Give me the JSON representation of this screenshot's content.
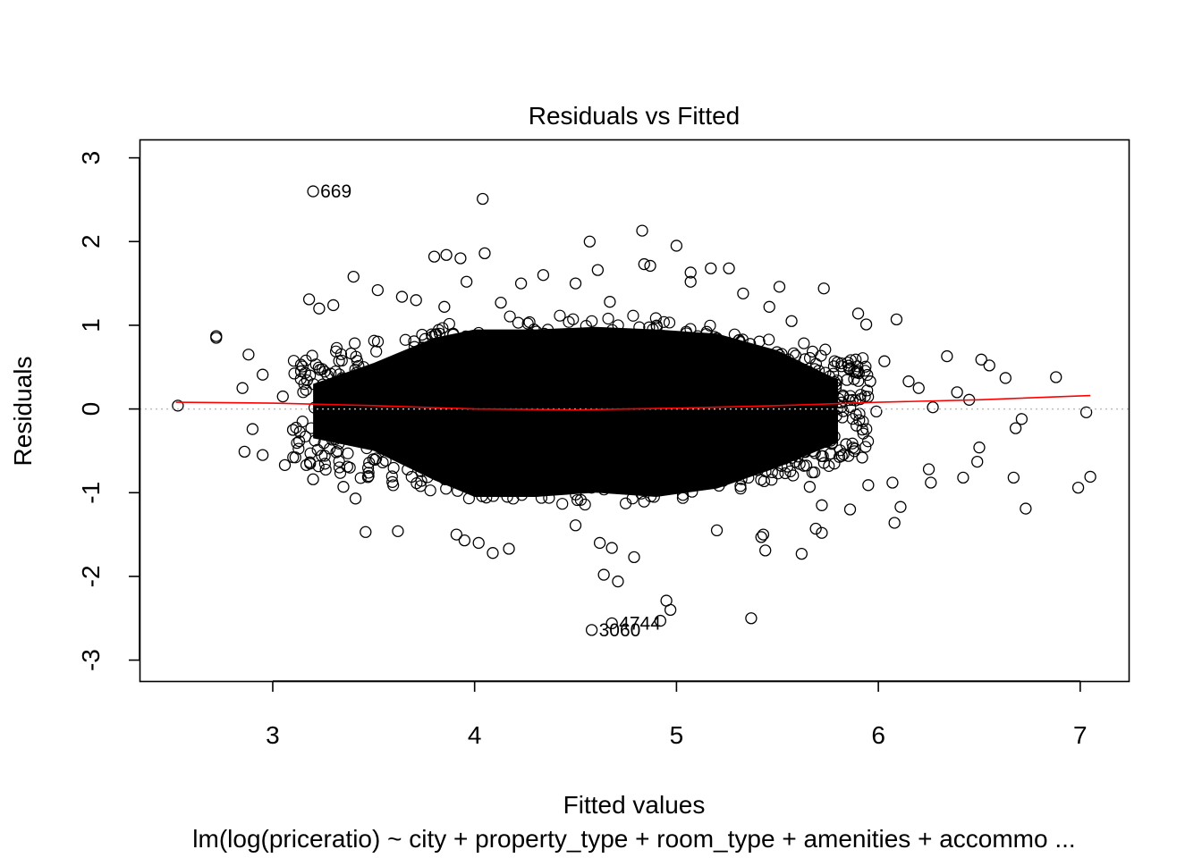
{
  "chart_data": {
    "type": "scatter",
    "title": "Residuals vs Fitted",
    "xlabel": "Fitted values",
    "ylabel": "Residuals",
    "subtitle": "lm(log(priceratio) ~ city + property_type + room_type + amenities + accommo ...",
    "xlim": [
      2.34,
      7.24
    ],
    "ylim": [
      -3.25,
      3.22
    ],
    "x_ticks": [
      3,
      4,
      5,
      6,
      7
    ],
    "y_ticks": [
      -3,
      -2,
      -1,
      0,
      1,
      2,
      3
    ],
    "zero_reference_line": true,
    "point_style": "open-circle",
    "smooth_color": "#ff0000",
    "reference_color": "#bdbdbd",
    "smooth_line": {
      "x": [
        2.52,
        3.0,
        3.5,
        4.0,
        4.5,
        5.0,
        5.5,
        6.0,
        6.5,
        7.05
      ],
      "y": [
        0.08,
        0.07,
        0.04,
        0.0,
        -0.01,
        0.01,
        0.04,
        0.08,
        0.11,
        0.16
      ]
    },
    "labeled_points": [
      {
        "label": "669",
        "x": 3.2,
        "y": 2.6
      },
      {
        "label": "3060",
        "x": 4.58,
        "y": -2.64
      },
      {
        "label": "4744",
        "x": 4.68,
        "y": -2.56
      }
    ],
    "points": [
      {
        "x": 4.04,
        "y": 2.51
      },
      {
        "x": 4.57,
        "y": 2.0
      },
      {
        "x": 4.83,
        "y": 2.13
      },
      {
        "x": 5.0,
        "y": 1.95
      },
      {
        "x": 3.8,
        "y": 1.82
      },
      {
        "x": 3.86,
        "y": 1.84
      },
      {
        "x": 3.93,
        "y": 1.8
      },
      {
        "x": 4.05,
        "y": 1.86
      },
      {
        "x": 4.84,
        "y": 1.73
      },
      {
        "x": 4.87,
        "y": 1.71
      },
      {
        "x": 5.07,
        "y": 1.63
      },
      {
        "x": 5.17,
        "y": 1.68
      },
      {
        "x": 5.26,
        "y": 1.68
      },
      {
        "x": 4.61,
        "y": 1.66
      },
      {
        "x": 3.4,
        "y": 1.58
      },
      {
        "x": 5.51,
        "y": 1.46
      },
      {
        "x": 5.73,
        "y": 1.44
      },
      {
        "x": 3.18,
        "y": 1.31
      },
      {
        "x": 3.96,
        "y": 1.52
      },
      {
        "x": 2.72,
        "y": 0.87
      },
      {
        "x": 2.72,
        "y": 0.85
      },
      {
        "x": 2.53,
        "y": 0.04
      },
      {
        "x": 6.09,
        "y": 1.07
      },
      {
        "x": 6.34,
        "y": 0.63
      },
      {
        "x": 6.51,
        "y": 0.59
      },
      {
        "x": 6.55,
        "y": 0.52
      },
      {
        "x": 6.63,
        "y": 0.37
      },
      {
        "x": 6.88,
        "y": 0.38
      },
      {
        "x": 7.03,
        "y": -0.04
      },
      {
        "x": 6.68,
        "y": -0.23
      },
      {
        "x": 6.71,
        "y": -0.12
      },
      {
        "x": 6.5,
        "y": -0.46
      },
      {
        "x": 6.49,
        "y": -0.63
      },
      {
        "x": 6.67,
        "y": -0.82
      },
      {
        "x": 6.99,
        "y": -0.94
      },
      {
        "x": 7.05,
        "y": -0.81
      },
      {
        "x": 6.73,
        "y": -1.19
      },
      {
        "x": 6.42,
        "y": -0.82
      },
      {
        "x": 6.26,
        "y": -0.88
      },
      {
        "x": 6.25,
        "y": -0.72
      },
      {
        "x": 6.08,
        "y": -1.36
      },
      {
        "x": 6.11,
        "y": -1.17
      },
      {
        "x": 6.07,
        "y": -0.88
      },
      {
        "x": 6.27,
        "y": 0.02
      },
      {
        "x": 6.39,
        "y": 0.2
      },
      {
        "x": 6.45,
        "y": 0.11
      },
      {
        "x": 6.2,
        "y": 0.25
      },
      {
        "x": 6.15,
        "y": 0.33
      },
      {
        "x": 2.85,
        "y": 0.25
      },
      {
        "x": 2.88,
        "y": 0.65
      },
      {
        "x": 2.9,
        "y": -0.24
      },
      {
        "x": 2.86,
        "y": -0.51
      },
      {
        "x": 2.95,
        "y": -0.55
      },
      {
        "x": 2.95,
        "y": 0.41
      },
      {
        "x": 3.06,
        "y": -0.67
      },
      {
        "x": 3.2,
        "y": -0.84
      },
      {
        "x": 3.35,
        "y": -0.93
      },
      {
        "x": 3.41,
        "y": -1.07
      },
      {
        "x": 3.46,
        "y": -1.47
      },
      {
        "x": 3.62,
        "y": -1.46
      },
      {
        "x": 3.91,
        "y": -1.5
      },
      {
        "x": 3.95,
        "y": -1.57
      },
      {
        "x": 4.02,
        "y": -1.6
      },
      {
        "x": 4.09,
        "y": -1.72
      },
      {
        "x": 4.17,
        "y": -1.67
      },
      {
        "x": 4.5,
        "y": -1.39
      },
      {
        "x": 4.64,
        "y": -1.98
      },
      {
        "x": 4.71,
        "y": -2.06
      },
      {
        "x": 4.68,
        "y": -1.66
      },
      {
        "x": 4.79,
        "y": -1.77
      },
      {
        "x": 4.92,
        "y": -2.53
      },
      {
        "x": 4.95,
        "y": -2.29
      },
      {
        "x": 4.97,
        "y": -2.4
      },
      {
        "x": 5.37,
        "y": -2.5
      },
      {
        "x": 5.43,
        "y": -1.5
      },
      {
        "x": 5.42,
        "y": -1.53
      },
      {
        "x": 5.44,
        "y": -1.69
      },
      {
        "x": 5.62,
        "y": -1.73
      },
      {
        "x": 5.69,
        "y": -1.43
      },
      {
        "x": 5.72,
        "y": -1.48
      },
      {
        "x": 5.86,
        "y": -1.2
      },
      {
        "x": 5.2,
        "y": -1.45
      },
      {
        "x": 4.62,
        "y": -1.6
      },
      {
        "x": 5.33,
        "y": 1.38
      },
      {
        "x": 5.9,
        "y": 1.14
      },
      {
        "x": 5.94,
        "y": 1.01
      },
      {
        "x": 6.03,
        "y": 0.57
      },
      {
        "x": 5.96,
        "y": 0.33
      },
      {
        "x": 5.99,
        "y": -0.03
      },
      {
        "x": 5.92,
        "y": -0.58
      },
      {
        "x": 5.95,
        "y": -0.91
      },
      {
        "x": 5.72,
        "y": -1.15
      },
      {
        "x": 5.66,
        "y": -0.93
      },
      {
        "x": 5.84,
        "y": -0.42
      },
      {
        "x": 3.3,
        "y": 1.24
      },
      {
        "x": 3.23,
        "y": 1.2
      },
      {
        "x": 3.52,
        "y": 1.42
      },
      {
        "x": 3.64,
        "y": 1.34
      },
      {
        "x": 3.71,
        "y": 1.3
      },
      {
        "x": 3.85,
        "y": 1.22
      },
      {
        "x": 4.13,
        "y": 1.27
      },
      {
        "x": 4.23,
        "y": 1.5
      },
      {
        "x": 4.34,
        "y": 1.6
      },
      {
        "x": 4.5,
        "y": 1.5
      },
      {
        "x": 4.67,
        "y": 1.28
      },
      {
        "x": 5.07,
        "y": 1.52
      },
      {
        "x": 5.46,
        "y": 1.22
      },
      {
        "x": 5.57,
        "y": 1.05
      },
      {
        "x": 3.1,
        "y": -0.25
      },
      {
        "x": 3.05,
        "y": 0.15
      },
      {
        "x": 3.14,
        "y": 0.45
      }
    ]
  }
}
